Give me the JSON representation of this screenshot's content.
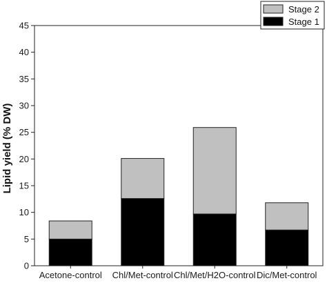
{
  "chart_data": {
    "type": "bar",
    "stacked": true,
    "categories": [
      "Acetone-control",
      "Chl/Met-control",
      "Chl/Met/H2O-control",
      "Dic/Met-control"
    ],
    "series": [
      {
        "name": "Stage 1",
        "color": "#000000",
        "values": [
          5.0,
          12.6,
          9.7,
          6.7
        ]
      },
      {
        "name": "Stage 2",
        "color": "#c0c0c0",
        "values": [
          3.4,
          7.5,
          16.2,
          5.1
        ]
      }
    ],
    "xlabel": "",
    "ylabel": "Lipid yield (% DW)",
    "ylim": [
      0,
      45
    ],
    "yticks": [
      0,
      5,
      10,
      15,
      20,
      25,
      30,
      35,
      40,
      45
    ],
    "grid": false,
    "legend_position": "top-right",
    "legend_order": [
      "Stage 2",
      "Stage 1"
    ]
  }
}
